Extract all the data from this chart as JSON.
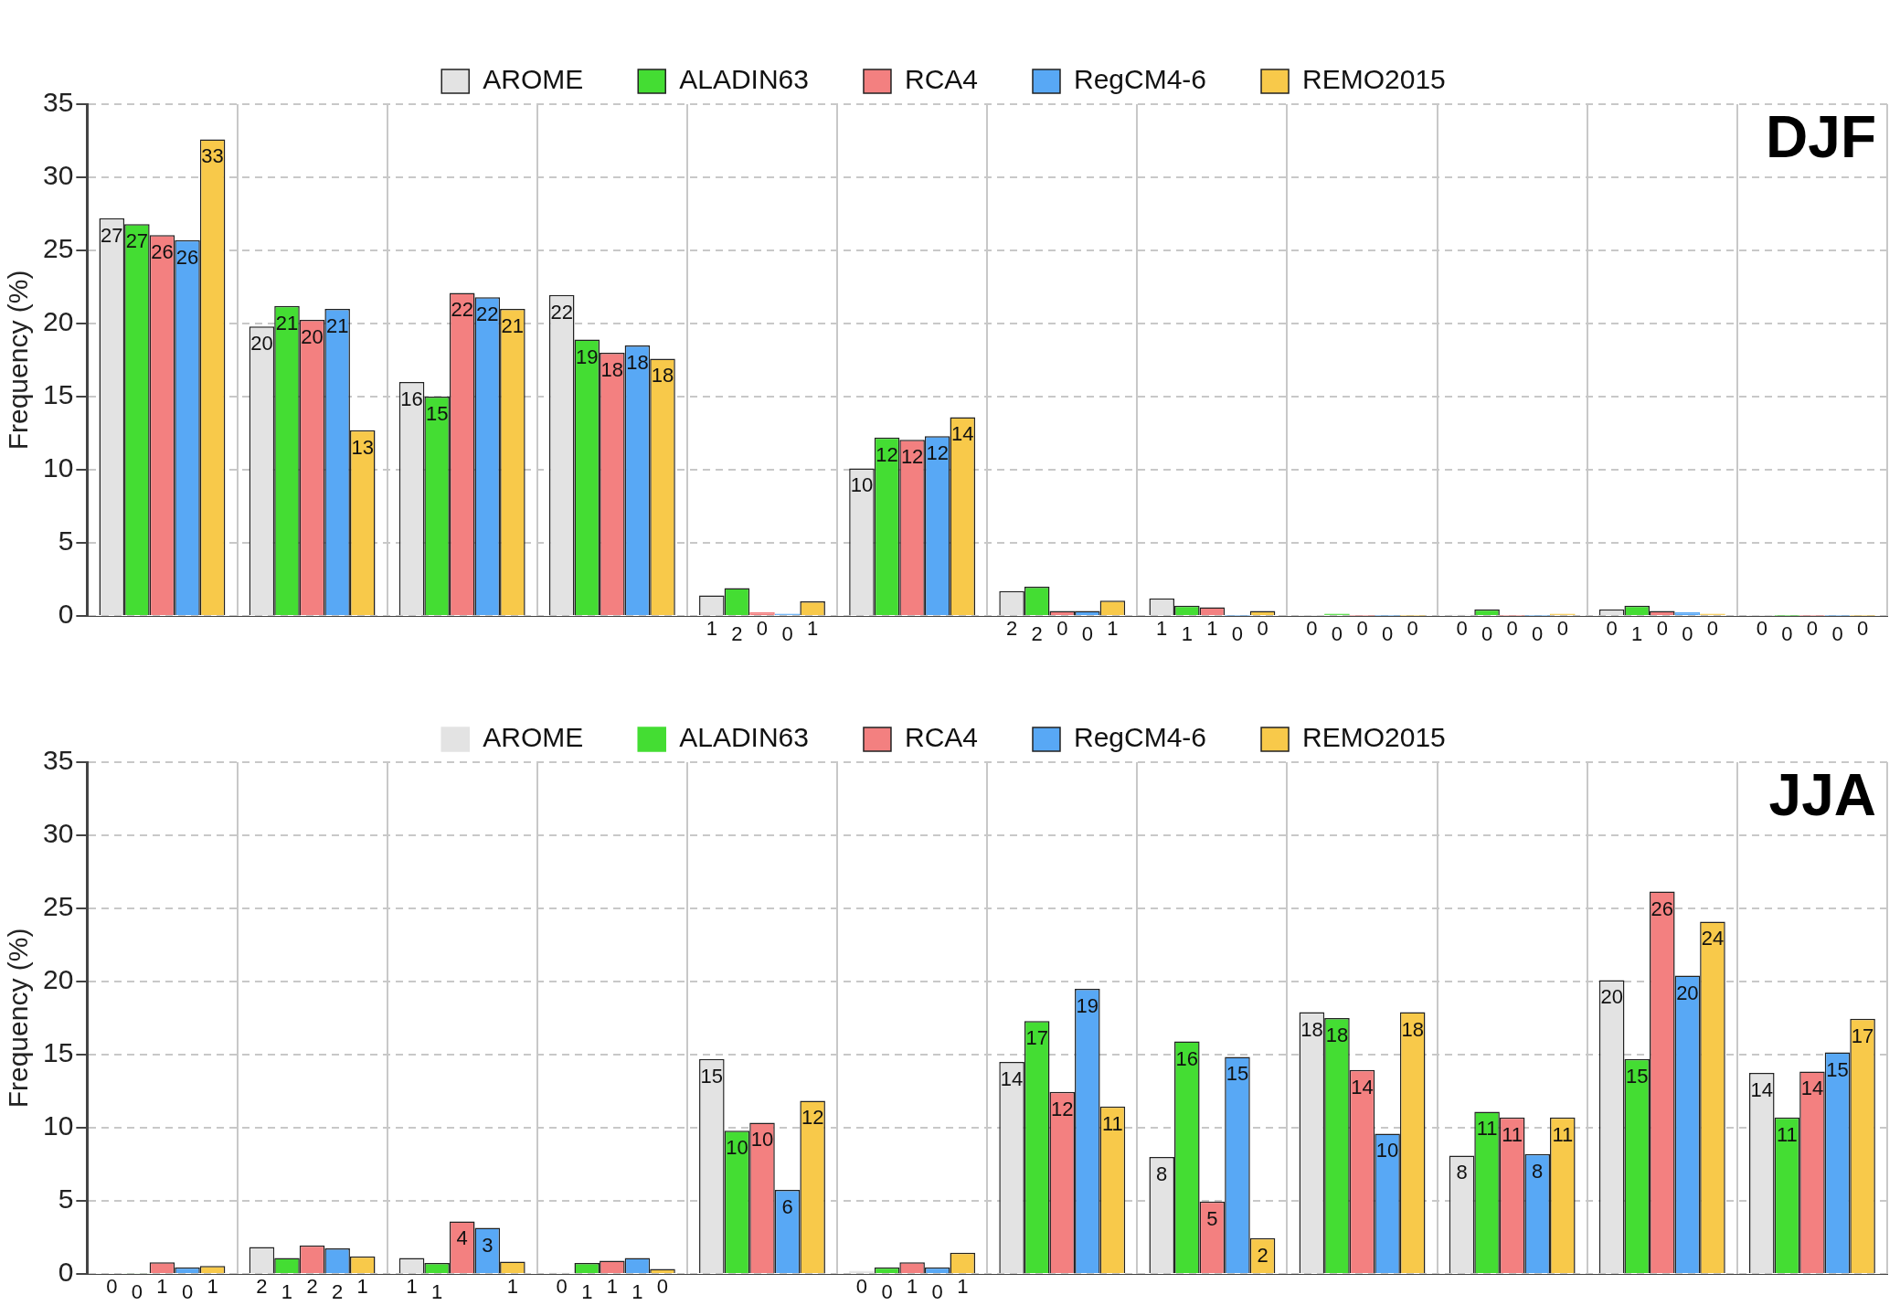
{
  "chart_data": [
    {
      "type": "bar",
      "title": "DJF",
      "ylabel": "Frequency (%)",
      "categories": [
        null,
        null,
        null,
        null,
        null,
        null,
        null,
        null,
        null,
        null,
        null,
        null
      ],
      "ylim": [
        0,
        35
      ],
      "yticks": [
        0,
        5,
        10,
        15,
        20,
        25,
        30,
        35
      ],
      "grid": true,
      "legend": "top",
      "tick_labels": "y",
      "series": [
        {
          "name": "AROME",
          "color": "#e3e3e3",
          "values": [
            27.2,
            19.8,
            16.0,
            21.95,
            1.4,
            10.1,
            1.7,
            1.2,
            0.02,
            0.1,
            0.45,
            0.02
          ],
          "value_labels": [
            "27",
            "20",
            "16",
            "22",
            "1",
            "10",
            "2",
            "1",
            "0",
            "0",
            "0",
            "0"
          ]
        },
        {
          "name": "ALADIN63",
          "color": "#44dd33",
          "values": [
            26.8,
            21.2,
            15.0,
            18.9,
            1.9,
            12.2,
            2.0,
            0.7,
            0.15,
            0.45,
            0.7,
            0.02
          ],
          "value_labels": [
            "27",
            "21",
            "15",
            "19",
            "2",
            "12",
            "2",
            "1",
            "0",
            "0",
            "1",
            "0"
          ]
        },
        {
          "name": "RCA4",
          "color": "#f38080",
          "values": [
            26.05,
            20.25,
            22.1,
            18.0,
            0.25,
            12.05,
            0.35,
            0.6,
            0.02,
            0.02,
            0.35,
            0.02
          ],
          "value_labels": [
            "26",
            "20",
            "22",
            "18",
            "0",
            "12",
            "0",
            "1",
            "0",
            "0",
            "0",
            "0"
          ]
        },
        {
          "name": "RegCM4-6",
          "color": "#58a8f5",
          "values": [
            25.7,
            21.0,
            21.8,
            18.5,
            0.15,
            12.3,
            0.35,
            0.02,
            0.02,
            0.02,
            0.25,
            0.02
          ],
          "value_labels": [
            "26",
            "21",
            "22",
            "18",
            "0",
            "12",
            "0",
            "0",
            "0",
            "0",
            "0",
            "0"
          ]
        },
        {
          "name": "REMO2015",
          "color": "#f8c94a",
          "values": [
            32.6,
            12.7,
            21.0,
            17.6,
            1.0,
            13.6,
            1.05,
            0.35,
            0.02,
            0.15,
            0.15,
            0.02
          ],
          "value_labels": [
            "33",
            "13",
            "21",
            "18",
            "1",
            "14",
            "1",
            "0",
            "0",
            "0",
            "0",
            "0"
          ]
        }
      ]
    },
    {
      "type": "bar",
      "title": "JJA",
      "ylabel": "Frequency (%)",
      "categories": [
        null,
        null,
        null,
        null,
        null,
        null,
        null,
        null,
        null,
        null,
        null,
        null
      ],
      "ylim": [
        0,
        35
      ],
      "yticks": [
        0,
        5,
        10,
        15,
        20,
        25,
        30,
        35
      ],
      "grid": true,
      "legend": "top",
      "tick_labels": "y",
      "series": [
        {
          "name": "AROME",
          "color": "#e3e3e3",
          "values": [
            0.05,
            1.85,
            1.1,
            0.1,
            14.7,
            0.22,
            14.5,
            8.0,
            17.9,
            8.1,
            20.1,
            13.75
          ],
          "value_labels": [
            "0",
            "2",
            "1",
            "0",
            "15",
            "0",
            "14",
            "8",
            "18",
            "8",
            "20",
            "14"
          ]
        },
        {
          "name": "ALADIN63",
          "color": "#44dd33",
          "values": [
            0.05,
            1.1,
            0.75,
            0.75,
            9.8,
            0.45,
            17.3,
            15.9,
            17.5,
            11.1,
            14.7,
            10.7
          ],
          "value_labels": [
            "0",
            "1",
            "1",
            "1",
            "10",
            "0",
            "17",
            "16",
            "18",
            "11",
            "15",
            "11"
          ]
        },
        {
          "name": "RCA4",
          "color": "#f38080",
          "values": [
            0.8,
            1.95,
            3.6,
            0.9,
            10.35,
            0.8,
            12.45,
            4.95,
            13.95,
            10.7,
            26.15,
            13.85
          ],
          "value_labels": [
            "1",
            "2",
            "4",
            "1",
            "10",
            "1",
            "12",
            "5",
            "14",
            "11",
            "26",
            "14"
          ]
        },
        {
          "name": "RegCM4-6",
          "color": "#58a8f5",
          "values": [
            0.45,
            1.75,
            3.15,
            1.1,
            5.75,
            0.45,
            19.5,
            14.85,
            9.6,
            8.2,
            20.4,
            15.15
          ],
          "value_labels": [
            "0",
            "2",
            "3",
            "1",
            "6",
            "0",
            "19",
            "15",
            "10",
            "8",
            "20",
            "15"
          ]
        },
        {
          "name": "REMO2015",
          "color": "#f8c94a",
          "values": [
            0.55,
            1.2,
            0.85,
            0.35,
            11.85,
            1.45,
            11.45,
            2.45,
            17.9,
            10.7,
            24.1,
            17.45
          ],
          "value_labels": [
            "1",
            "1",
            "1",
            "0",
            "12",
            "1",
            "11",
            "2",
            "18",
            "11",
            "24",
            "17"
          ]
        }
      ]
    }
  ]
}
